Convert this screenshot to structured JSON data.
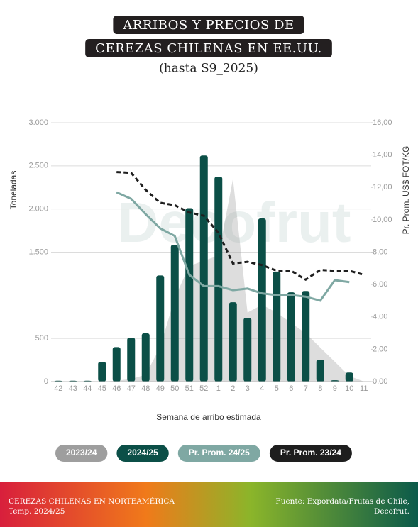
{
  "chart_data": {
    "type": "bar",
    "title_lines": [
      "ARRIBOS Y PRECIOS DE",
      "CEREZAS CHILENAS EN EE.UU."
    ],
    "subtitle": "(hasta S9_2025)",
    "watermark": "Decofrut",
    "y_label": "Toneladas",
    "y2_label": "Pr. Prom. US$ FOT/KG",
    "x_label": "Semana de arribo estimada",
    "categories": [
      "42",
      "43",
      "44",
      "45",
      "46",
      "47",
      "48",
      "49",
      "50",
      "51",
      "52",
      "1",
      "2",
      "3",
      "4",
      "5",
      "6",
      "7",
      "8",
      "9",
      "10",
      "11"
    ],
    "ylim": [
      0,
      3000
    ],
    "yticks": [
      0,
      500,
      {
        "value": 1500,
        "label": "1.500"
      },
      {
        "value": 2000,
        "label": "2.000"
      },
      {
        "value": 2500,
        "label": "2.500"
      },
      {
        "value": 3000,
        "label": "3.000"
      }
    ],
    "y2lim": [
      0,
      16
    ],
    "y2ticks": [
      {
        "value": 0,
        "label": "0,00"
      },
      {
        "value": 2,
        "label": "2,00"
      },
      {
        "value": 4,
        "label": "4,00"
      },
      {
        "value": 6,
        "label": "6,00"
      },
      {
        "value": 8,
        "label": "8,00"
      },
      {
        "value": 10,
        "label": "10,00"
      },
      {
        "value": 12,
        "label": "12,00"
      },
      {
        "value": 14,
        "label": "14,00"
      },
      {
        "value": 16,
        "label": "16,00"
      }
    ],
    "grid": true,
    "series": [
      {
        "name": "2023/24",
        "type": "area",
        "color": "#9e9e9e",
        "values": [
          0,
          0,
          0,
          0,
          10,
          30,
          80,
          400,
          970,
          1340,
          1400,
          1460,
          2350,
          800,
          890,
          800,
          680,
          560,
          395,
          230,
          65,
          0
        ]
      },
      {
        "name": "2024/25",
        "type": "bar",
        "color": "#0b4f47",
        "values": [
          10,
          10,
          10,
          230,
          400,
          510,
          560,
          1230,
          1585,
          2010,
          2620,
          2375,
          920,
          740,
          1890,
          1275,
          1035,
          1050,
          255,
          15,
          105,
          0
        ]
      },
      {
        "name": "Pr. Prom. 24/25",
        "type": "line",
        "axis": "y2",
        "color": "#7fa8a3",
        "values": [
          null,
          null,
          null,
          null,
          11.7,
          11.3,
          10.35,
          9.47,
          9.0,
          6.6,
          5.9,
          5.9,
          5.65,
          5.75,
          5.45,
          5.35,
          5.35,
          5.25,
          5.0,
          6.27,
          6.15,
          null
        ]
      },
      {
        "name": "Pr. Prom. 23/24",
        "type": "line",
        "axis": "y2",
        "dashed": true,
        "color": "#1e1e1e",
        "values": [
          null,
          null,
          null,
          null,
          12.95,
          12.9,
          11.85,
          11.05,
          10.9,
          10.45,
          10.25,
          9.2,
          7.3,
          7.4,
          7.2,
          6.85,
          6.85,
          6.3,
          6.9,
          6.85,
          6.85,
          6.6
        ]
      }
    ],
    "footer_left": [
      "CEREZAS CHILENAS EN NORTEAMÉRICA",
      "Temp. 2024/25"
    ],
    "footer_right": [
      "Fuente: Expordata/Frutas de Chile,",
      "Decofrut."
    ]
  }
}
